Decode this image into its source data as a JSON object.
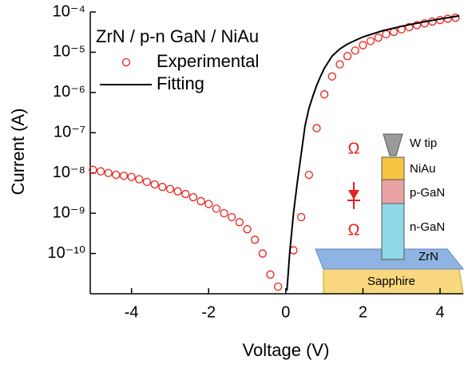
{
  "chart_data": {
    "type": "line",
    "xlabel": "Voltage (V)",
    "ylabel": "Current (A)",
    "legend_title": "ZrN / p-n GaN / NiAu",
    "legend": "upper left",
    "xlim": [
      -5.07,
      4.6
    ],
    "xticks": [
      -4,
      -2,
      0,
      2,
      4
    ],
    "yscale": "log",
    "ylim": [
      1e-11,
      0.0001
    ],
    "yticks": [
      {
        "value": 0.0001,
        "label": "10⁻⁴"
      },
      {
        "value": 1e-05,
        "label": "10⁻⁵"
      },
      {
        "value": 1e-06,
        "label": "10⁻⁶"
      },
      {
        "value": 1e-07,
        "label": "10⁻⁷"
      },
      {
        "value": 1e-08,
        "label": "10⁻⁸"
      },
      {
        "value": 1e-09,
        "label": "10⁻⁹"
      },
      {
        "value": 1e-10,
        "label": "10⁻¹⁰"
      }
    ],
    "series": [
      {
        "name": "Experimental",
        "type": "scatter",
        "color": "#e8201c",
        "x": [
          -5.0,
          -4.8,
          -4.6,
          -4.4,
          -4.2,
          -4.0,
          -3.8,
          -3.6,
          -3.4,
          -3.2,
          -3.0,
          -2.8,
          -2.6,
          -2.4,
          -2.2,
          -2.0,
          -1.8,
          -1.6,
          -1.4,
          -1.2,
          -1.0,
          -0.8,
          -0.6,
          -0.4,
          -0.2,
          0.2,
          0.4,
          0.6,
          0.8,
          1.0,
          1.2,
          1.4,
          1.6,
          1.8,
          2.0,
          2.2,
          2.4,
          2.6,
          2.8,
          3.0,
          3.2,
          3.4,
          3.6,
          3.8,
          4.0,
          4.2,
          4.4
        ],
        "values": [
          1.2e-08,
          1.1e-08,
          1e-08,
          9e-09,
          8.5e-09,
          8e-09,
          7e-09,
          6e-09,
          5.2e-09,
          4.5e-09,
          4e-09,
          3.5e-09,
          3e-09,
          2.5e-09,
          2e-09,
          1.7e-09,
          1.3e-09,
          1e-09,
          8e-10,
          6e-10,
          4e-10,
          2.2e-10,
          1e-10,
          3e-11,
          1.5e-11,
          1.2e-10,
          8e-10,
          9e-09,
          1.3e-07,
          9e-07,
          2.5e-06,
          5e-06,
          8e-06,
          1.1e-05,
          1.5e-05,
          1.9e-05,
          2.3e-05,
          2.8e-05,
          3.2e-05,
          3.7e-05,
          4.2e-05,
          4.7e-05,
          5.2e-05,
          5.8e-05,
          6.3e-05,
          6.8e-05,
          7.2e-05
        ]
      },
      {
        "name": "Fitting",
        "type": "line",
        "color": "#000000",
        "x": [
          0.03,
          0.1,
          0.2,
          0.3,
          0.4,
          0.5,
          0.6,
          0.7,
          0.8,
          0.9,
          1.0,
          1.2,
          1.4,
          1.6,
          2.0,
          2.5,
          3.0,
          3.5,
          4.0,
          4.5
        ],
        "values": [
          1.2e-11,
          1e-10,
          1e-09,
          6e-09,
          3e-08,
          1.5e-07,
          4e-07,
          8e-07,
          1.5e-06,
          2.5e-06,
          4e-06,
          8e-06,
          1.2e-05,
          1.6e-05,
          2.4e-05,
          3.4e-05,
          4.4e-05,
          5.5e-05,
          6.7e-05,
          8e-05
        ]
      }
    ],
    "annotations": [
      "Ω",
      "Ω",
      "W tip",
      "NiAu",
      "p-GaN",
      "n-GaN",
      "ZrN",
      "Sapphire"
    ]
  }
}
